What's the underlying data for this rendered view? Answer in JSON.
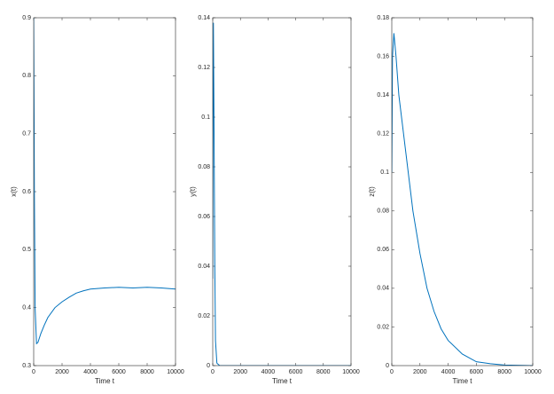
{
  "chart_data": [
    {
      "type": "line",
      "xlabel": "Time t",
      "ylabel": "x(t)",
      "x": [
        0,
        50,
        100,
        200,
        300,
        500,
        750,
        1000,
        1500,
        2000,
        2500,
        3000,
        3500,
        4000,
        5000,
        6000,
        7000,
        8000,
        9000,
        10000
      ],
      "series": [
        {
          "color": "#0072bd",
          "values": [
            0.9,
            0.6,
            0.4,
            0.338,
            0.34,
            0.355,
            0.37,
            0.383,
            0.4,
            0.41,
            0.418,
            0.425,
            0.429,
            0.432,
            0.434,
            0.435,
            0.434,
            0.435,
            0.434,
            0.432
          ]
        }
      ],
      "xlim": [
        0,
        10000
      ],
      "xticks": [
        0,
        2000,
        4000,
        6000,
        8000,
        10000
      ],
      "ylim": [
        0.3,
        0.9
      ],
      "yticks": [
        0.3,
        0.4,
        0.5,
        0.6,
        0.7,
        0.8,
        0.9
      ],
      "grid": false
    },
    {
      "type": "line",
      "xlabel": "Time t",
      "ylabel": "y(t)",
      "x": [
        0,
        20,
        50,
        100,
        150,
        200,
        300,
        500,
        1000,
        10000
      ],
      "series": [
        {
          "color": "#0072bd",
          "values": [
            0.035,
            0.1,
            0.138,
            0.09,
            0.04,
            0.01,
            0.001,
            0,
            0,
            0
          ]
        }
      ],
      "xlim": [
        0,
        10000
      ],
      "xticks": [
        0,
        2000,
        4000,
        6000,
        8000,
        10000
      ],
      "ylim": [
        0,
        0.14
      ],
      "yticks": [
        0,
        0.02,
        0.04,
        0.06,
        0.08,
        0.1,
        0.12,
        0.14
      ],
      "grid": false
    },
    {
      "type": "line",
      "xlabel": "Time t",
      "ylabel": "z(t)",
      "x": [
        0,
        50,
        150,
        300,
        500,
        1000,
        1500,
        2000,
        2500,
        3000,
        3500,
        4000,
        5000,
        6000,
        7000,
        8000,
        10000
      ],
      "series": [
        {
          "color": "#0072bd",
          "values": [
            0.1,
            0.16,
            0.172,
            0.16,
            0.14,
            0.11,
            0.08,
            0.058,
            0.04,
            0.028,
            0.019,
            0.013,
            0.006,
            0.002,
            0.001,
            0.0003,
            0
          ]
        }
      ],
      "xlim": [
        0,
        10000
      ],
      "xticks": [
        0,
        2000,
        4000,
        6000,
        8000,
        10000
      ],
      "ylim": [
        0,
        0.18
      ],
      "yticks": [
        0,
        0.02,
        0.04,
        0.06,
        0.08,
        0.1,
        0.12,
        0.14,
        0.16,
        0.18
      ],
      "grid": false
    }
  ]
}
